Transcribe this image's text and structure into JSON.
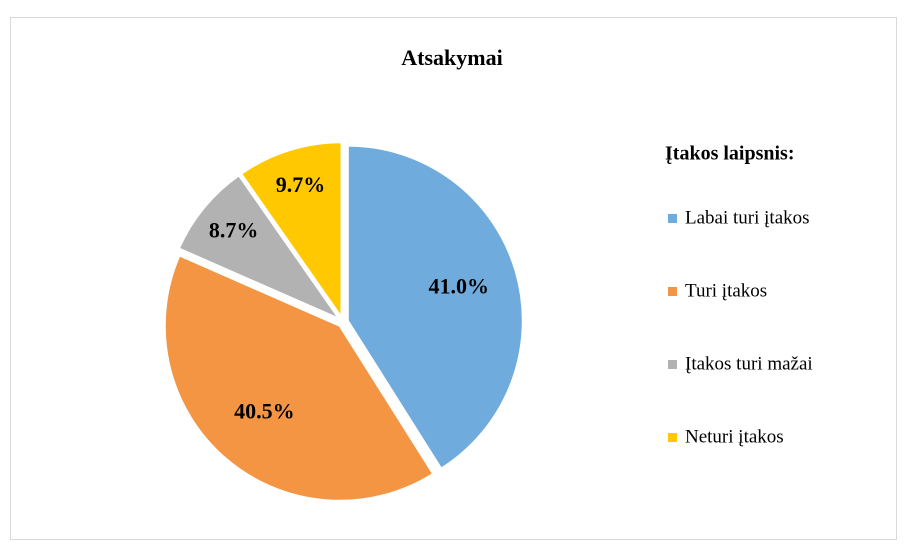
{
  "chart_data": {
    "type": "pie",
    "title": "Atsakymai",
    "legend_title": "Įtakos laipsnis:",
    "legend": "right",
    "categories": [
      "Labai turi įtakos",
      "Turi įtakos",
      "Įtakos turi mažai",
      "Neturi įtakos"
    ],
    "values": [
      41.0,
      40.5,
      8.7,
      9.7
    ],
    "value_labels": [
      "41.0%",
      "40.5%",
      "8.7%",
      "9.7%"
    ],
    "colors": [
      "#70abdd",
      "#f39542",
      "#b2b2b2",
      "#ffc800"
    ]
  }
}
